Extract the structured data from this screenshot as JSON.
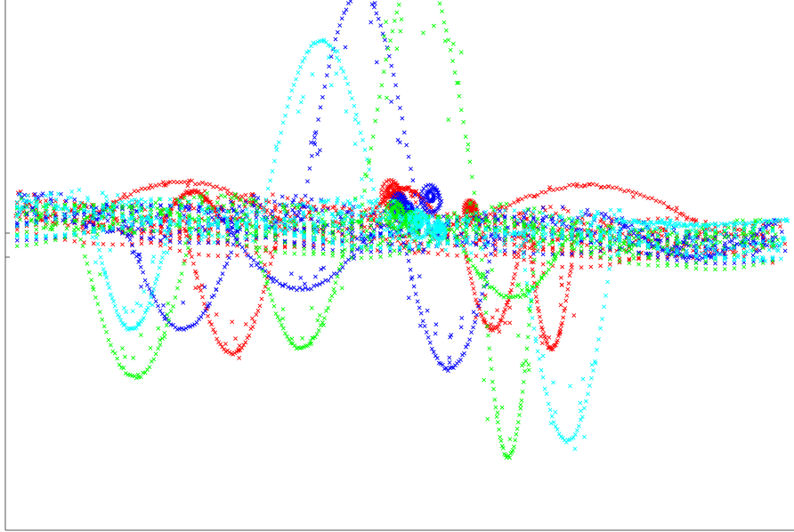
{
  "chart_data": {
    "type": "scatter",
    "title": "",
    "xlabel": "",
    "ylabel": "",
    "grid": false,
    "legend": "none",
    "marker": "x",
    "xlim": [
      -1.0,
      1.0
    ],
    "ylim": [
      -1.0,
      1.0
    ],
    "y_ticks": [
      0.0,
      -0.15
    ],
    "series": [
      {
        "color": "#ff0000",
        "seed": 11,
        "loops": [
          {
            "x": -0.02,
            "y": 0.25,
            "r": 0.03
          },
          {
            "x": 0.0,
            "y": 0.2,
            "r": 0.02
          },
          {
            "x": 0.18,
            "y": 0.15,
            "r": 0.02
          }
        ],
        "arcs": [
          {
            "x0": -0.8,
            "x1": -0.3,
            "ymid": 0.32
          },
          {
            "x0": -0.6,
            "x1": -0.45,
            "ymid": 0.26
          },
          {
            "x0": 0.2,
            "x1": 0.75,
            "ymid": 0.3
          },
          {
            "x0": -0.08,
            "x1": 0.1,
            "ymid": 0.28
          },
          {
            "x0": -0.55,
            "x1": -0.3,
            "ymid": -0.75
          },
          {
            "x0": 0.15,
            "x1": 0.32,
            "ymid": -0.6
          },
          {
            "x0": 0.32,
            "x1": 0.45,
            "ymid": -0.72
          }
        ]
      },
      {
        "color": "#0000ff",
        "seed": 23,
        "loops": [
          {
            "x": 0.08,
            "y": 0.22,
            "r": 0.03
          },
          {
            "x": 0.02,
            "y": 0.14,
            "r": 0.02
          },
          {
            "x": 0.0,
            "y": 0.18,
            "r": 0.025
          }
        ],
        "arcs": [
          {
            "x0": -0.25,
            "x1": 0.05,
            "ymid": 1.5
          },
          {
            "x0": -0.7,
            "x1": -0.4,
            "ymid": -0.6
          },
          {
            "x0": -0.45,
            "x1": -0.05,
            "ymid": -0.35
          },
          {
            "x0": 0.0,
            "x1": 0.25,
            "ymid": -0.85
          },
          {
            "x0": 0.55,
            "x1": 0.95,
            "ymid": -0.15
          }
        ]
      },
      {
        "color": "#00ff00",
        "seed": 37,
        "loops": [
          {
            "x": -0.01,
            "y": 0.12,
            "r": 0.03
          },
          {
            "x": 0.03,
            "y": 0.08,
            "r": 0.02
          }
        ],
        "arcs": [
          {
            "x0": -0.1,
            "x1": 0.2,
            "ymid": 1.65
          },
          {
            "x0": -0.82,
            "x1": -0.52,
            "ymid": -0.9
          },
          {
            "x0": -0.38,
            "x1": -0.12,
            "ymid": -0.72
          },
          {
            "x0": 0.12,
            "x1": 0.45,
            "ymid": -0.4
          },
          {
            "x0": 0.2,
            "x1": 0.35,
            "ymid": -1.4
          }
        ]
      },
      {
        "color": "#00ffff",
        "seed": 53,
        "loops": [
          {
            "x": 0.05,
            "y": 0.06,
            "r": 0.03
          },
          {
            "x": 0.1,
            "y": 0.02,
            "r": 0.02
          }
        ],
        "arcs": [
          {
            "x0": -0.35,
            "x1": -0.05,
            "ymid": 1.2
          },
          {
            "x0": -0.78,
            "x1": -0.58,
            "ymid": -0.6
          },
          {
            "x0": 0.3,
            "x1": 0.55,
            "ymid": -1.3
          },
          {
            "x0": 0.55,
            "x1": 0.98,
            "ymid": 0.05
          }
        ]
      }
    ]
  }
}
